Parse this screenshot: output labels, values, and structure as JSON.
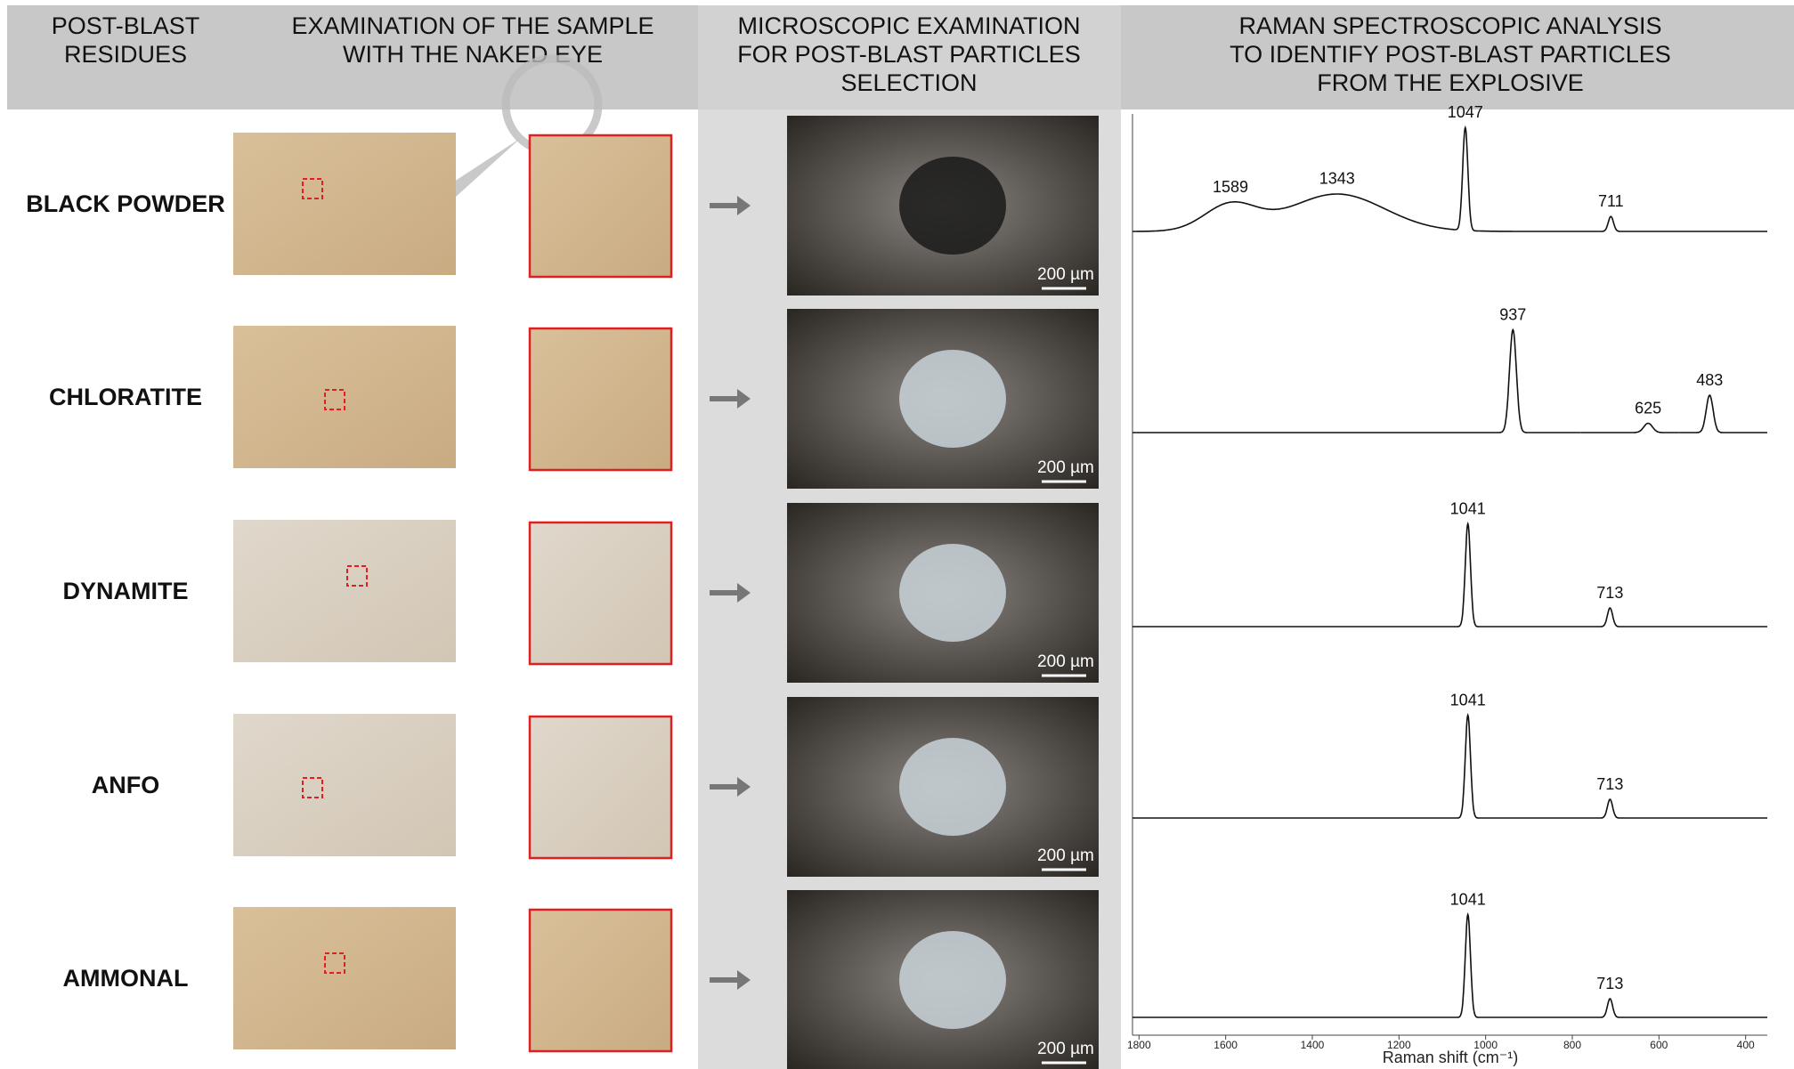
{
  "headers": [
    {
      "lines": [
        "POST-BLAST",
        "RESIDUES"
      ]
    },
    {
      "lines": [
        "EXAMINATION OF THE SAMPLE",
        "WITH THE NAKED EYE"
      ]
    },
    {
      "lines": [
        "MICROSCOPIC EXAMINATION",
        "FOR POST-BLAST PARTICLES",
        "SELECTION"
      ]
    },
    {
      "lines": [
        "RAMAN SPECTROSCOPIC ANALYSIS",
        "TO IDENTIFY POST-BLAST PARTICLES",
        "FROM THE EXPLOSIVE"
      ]
    }
  ],
  "rows": [
    {
      "label": "BLACK POWDER",
      "scale_bar": "200 µm",
      "peaks": [
        {
          "shift": 1589,
          "intensity": 14,
          "width": 60
        },
        {
          "shift": 1343,
          "intensity": 20,
          "width": 110
        },
        {
          "shift": 1047,
          "intensity": 55,
          "width": 6
        },
        {
          "shift": 711,
          "intensity": 8,
          "width": 6
        }
      ]
    },
    {
      "label": "CHLORATITE",
      "scale_bar": "200 µm",
      "peaks": [
        {
          "shift": 937,
          "intensity": 55,
          "width": 8
        },
        {
          "shift": 625,
          "intensity": 5,
          "width": 10
        },
        {
          "shift": 483,
          "intensity": 20,
          "width": 8
        }
      ]
    },
    {
      "label": "DYNAMITE",
      "scale_bar": "200 µm",
      "peaks": [
        {
          "shift": 1041,
          "intensity": 55,
          "width": 6
        },
        {
          "shift": 713,
          "intensity": 10,
          "width": 6
        }
      ]
    },
    {
      "label": "ANFO",
      "scale_bar": "200 µm",
      "peaks": [
        {
          "shift": 1041,
          "intensity": 55,
          "width": 6
        },
        {
          "shift": 713,
          "intensity": 10,
          "width": 6
        }
      ]
    },
    {
      "label": "AMMONAL",
      "scale_bar": "200 µm",
      "peaks": [
        {
          "shift": 1041,
          "intensity": 55,
          "width": 6
        },
        {
          "shift": 713,
          "intensity": 10,
          "width": 6
        }
      ]
    }
  ],
  "spectrum_axis": {
    "xlim": [
      1815,
      350
    ],
    "xticks": [
      1800,
      1600,
      1400,
      1200,
      1000,
      800,
      600,
      400
    ],
    "xlabel": "Raman shift (cm⁻¹)"
  }
}
